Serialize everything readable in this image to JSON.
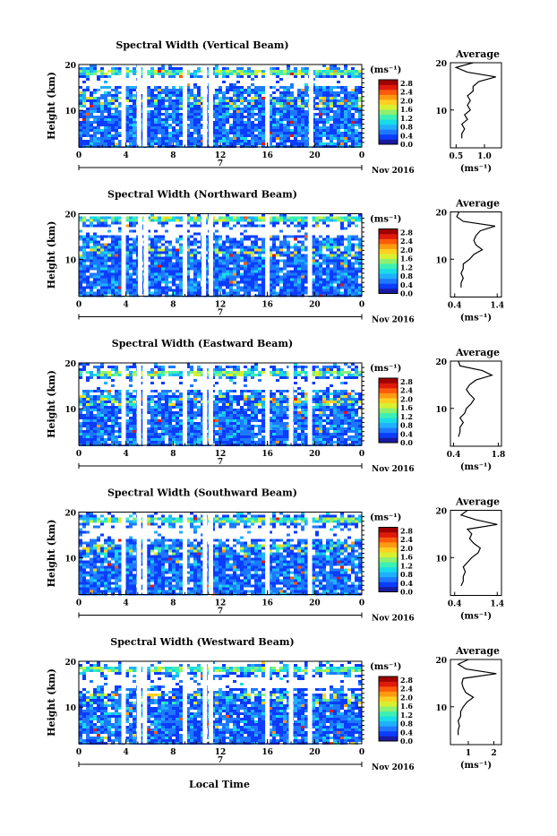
{
  "common": {
    "ylabel": "Height (km)",
    "xlabel": "Local Time",
    "date_label": "Nov 2016",
    "day_label": "7",
    "average_title": "Average",
    "unit_label": "(ms⁻¹)",
    "xticks": [
      "0",
      "4",
      "8",
      "12",
      "16",
      "20",
      "0"
    ],
    "yticks": [
      "20",
      "10"
    ],
    "colorbar_ticks": [
      "2.8",
      "2.4",
      "2.0",
      "1.6",
      "1.2",
      "0.8",
      "0.4",
      "0.0"
    ],
    "colors": {
      "jet": [
        "#1a1aa0",
        "#0b3cff",
        "#1e78ff",
        "#1fb0ff",
        "#18dce6",
        "#3cf0b4",
        "#8cf070",
        "#d8f030",
        "#ffd020",
        "#ff9a10",
        "#ff5a0a",
        "#e01a0a",
        "#a00000"
      ],
      "gap": "#ffffff",
      "line": "#000000"
    }
  },
  "chart_data": [
    {
      "type": "heatmap",
      "title": "Spectral Width (Vertical Beam)",
      "x_range": [
        0,
        24
      ],
      "y_range": [
        2,
        20
      ],
      "value_range": [
        0.0,
        3.0
      ],
      "data_gaps_hours": [
        3.8,
        5.1,
        5.6,
        9.0,
        10.7,
        11.2,
        16.0,
        19.7
      ],
      "dense_band_km": [
        18,
        19
      ],
      "blank_band_km": [
        15.5,
        17.5
      ],
      "profile": {
        "xticks": [
          "0.5",
          "1.0"
        ],
        "xlim": [
          0.4,
          1.3
        ],
        "heights": [
          4,
          5,
          6,
          7,
          8,
          9,
          10,
          11,
          12,
          13,
          14,
          15,
          16,
          17,
          18,
          19,
          20
        ],
        "values": [
          0.6,
          0.6,
          0.65,
          0.6,
          0.7,
          0.65,
          0.75,
          0.7,
          0.75,
          0.7,
          0.8,
          0.8,
          0.9,
          1.2,
          0.7,
          0.5,
          0.8
        ]
      }
    },
    {
      "type": "heatmap",
      "title": "Spectral Width (Northward Beam)",
      "x_range": [
        0,
        24
      ],
      "y_range": [
        2,
        20
      ],
      "value_range": [
        0.0,
        3.0
      ],
      "data_gaps_hours": [
        3.8,
        5.2,
        5.7,
        9.0,
        10.6,
        11.2,
        16.0,
        19.6
      ],
      "dense_band_km": [
        18.5,
        19.5
      ],
      "blank_band_km": [
        15.5,
        17.5
      ],
      "profile": {
        "xticks": [
          "0.4",
          "1.4"
        ],
        "xlim": [
          0.3,
          1.5
        ],
        "heights": [
          4,
          5,
          6,
          7,
          8,
          9,
          10,
          11,
          12,
          13,
          14,
          15,
          16,
          17,
          18,
          19,
          20
        ],
        "values": [
          0.55,
          0.55,
          0.6,
          0.55,
          0.6,
          0.6,
          0.75,
          0.85,
          1.05,
          0.9,
          0.85,
          0.9,
          1.0,
          1.35,
          0.6,
          0.45,
          0.5
        ]
      }
    },
    {
      "type": "heatmap",
      "title": "Spectral Width (Eastward Beam)",
      "x_range": [
        0,
        24
      ],
      "y_range": [
        2,
        20
      ],
      "value_range": [
        0.0,
        3.0
      ],
      "data_gaps_hours": [
        3.8,
        5.1,
        5.6,
        9.0,
        10.7,
        11.2,
        16.0,
        18.0,
        19.6
      ],
      "dense_band_km": [
        17.5,
        18.5
      ],
      "blank_band_km": [
        14.5,
        17
      ],
      "profile": {
        "xticks": [
          "0.4",
          "1.8"
        ],
        "xlim": [
          0.3,
          1.9
        ],
        "heights": [
          4,
          5,
          6,
          7,
          8,
          9,
          10,
          11,
          12,
          13,
          14,
          15,
          16,
          17,
          18,
          19,
          20
        ],
        "values": [
          0.55,
          0.6,
          0.6,
          0.7,
          0.6,
          0.75,
          0.8,
          0.95,
          1.05,
          0.9,
          0.8,
          0.9,
          1.1,
          1.6,
          1.3,
          0.6,
          0.55
        ]
      }
    },
    {
      "type": "heatmap",
      "title": "Spectral Width (Southward Beam)",
      "x_range": [
        0,
        24
      ],
      "y_range": [
        2,
        20
      ],
      "value_range": [
        0.0,
        3.0
      ],
      "data_gaps_hours": [
        3.8,
        5.1,
        5.6,
        9.0,
        10.7,
        11.2,
        16.0,
        19.6
      ],
      "dense_band_km": [
        18,
        19
      ],
      "blank_band_km": [
        14.5,
        17
      ],
      "profile": {
        "xticks": [
          "0.4",
          "1.4"
        ],
        "xlim": [
          0.3,
          1.5
        ],
        "heights": [
          4,
          5,
          6,
          7,
          8,
          9,
          10,
          11,
          12,
          13,
          14,
          15,
          16,
          17,
          18,
          19,
          20
        ],
        "values": [
          0.55,
          0.6,
          0.6,
          0.65,
          0.6,
          0.7,
          0.8,
          0.95,
          1.0,
          0.85,
          0.75,
          0.8,
          0.7,
          1.4,
          0.9,
          0.55,
          0.7
        ]
      }
    },
    {
      "type": "heatmap",
      "title": "Spectral Width (Westward Beam)",
      "x_range": [
        0,
        24
      ],
      "y_range": [
        2,
        20
      ],
      "value_range": [
        0.0,
        3.0
      ],
      "data_gaps_hours": [
        3.8,
        5.1,
        5.6,
        9.0,
        10.7,
        11.2,
        16.0,
        18.0,
        19.6
      ],
      "dense_band_km": [
        18,
        19
      ],
      "blank_band_km": [
        14.5,
        17
      ],
      "profile": {
        "xticks": [
          "1",
          "2"
        ],
        "xlim": [
          0.3,
          2.3
        ],
        "heights": [
          4,
          5,
          6,
          7,
          8,
          9,
          10,
          11,
          12,
          13,
          14,
          15,
          16,
          17,
          18,
          19,
          20
        ],
        "values": [
          0.6,
          0.6,
          0.65,
          0.6,
          0.7,
          0.7,
          0.8,
          0.95,
          1.2,
          0.9,
          0.8,
          0.75,
          0.8,
          2.1,
          0.9,
          0.6,
          1.0
        ]
      }
    }
  ]
}
